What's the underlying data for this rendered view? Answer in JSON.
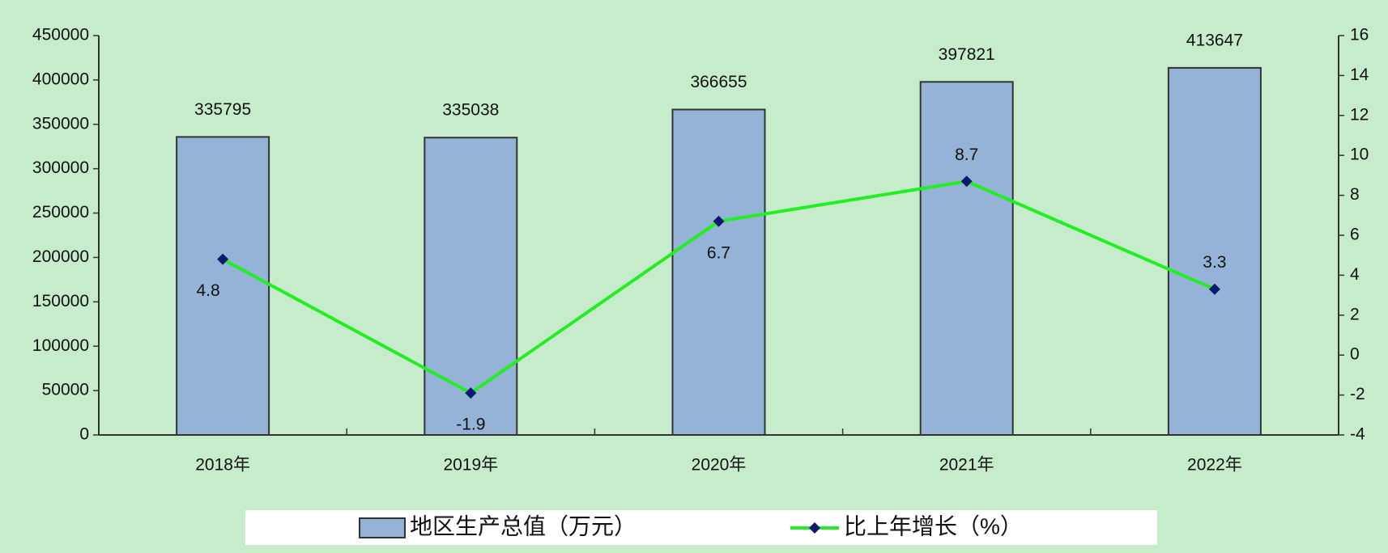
{
  "chart_data": {
    "type": "bar",
    "categories": [
      "2018年",
      "2019年",
      "2020年",
      "2021年",
      "2022年"
    ],
    "series": [
      {
        "name": "地区生产总值（万元）",
        "type": "bar",
        "color": "#95b3d7",
        "values": [
          335795,
          335038,
          366655,
          397821,
          413647
        ]
      },
      {
        "name": "比上年增长（%）",
        "type": "line",
        "axis": "y2",
        "color": "#22ee22",
        "values": [
          4.8,
          -1.9,
          6.7,
          8.7,
          3.3
        ]
      }
    ],
    "ylim": [
      0,
      450000
    ],
    "yticks": [
      0,
      50000,
      100000,
      150000,
      200000,
      250000,
      300000,
      350000,
      400000,
      450000
    ],
    "y2lim": [
      -4,
      16
    ],
    "y2ticks": [
      -4,
      -2,
      0,
      2,
      4,
      6,
      8,
      10,
      12,
      14,
      16
    ],
    "legend": "bottom"
  }
}
